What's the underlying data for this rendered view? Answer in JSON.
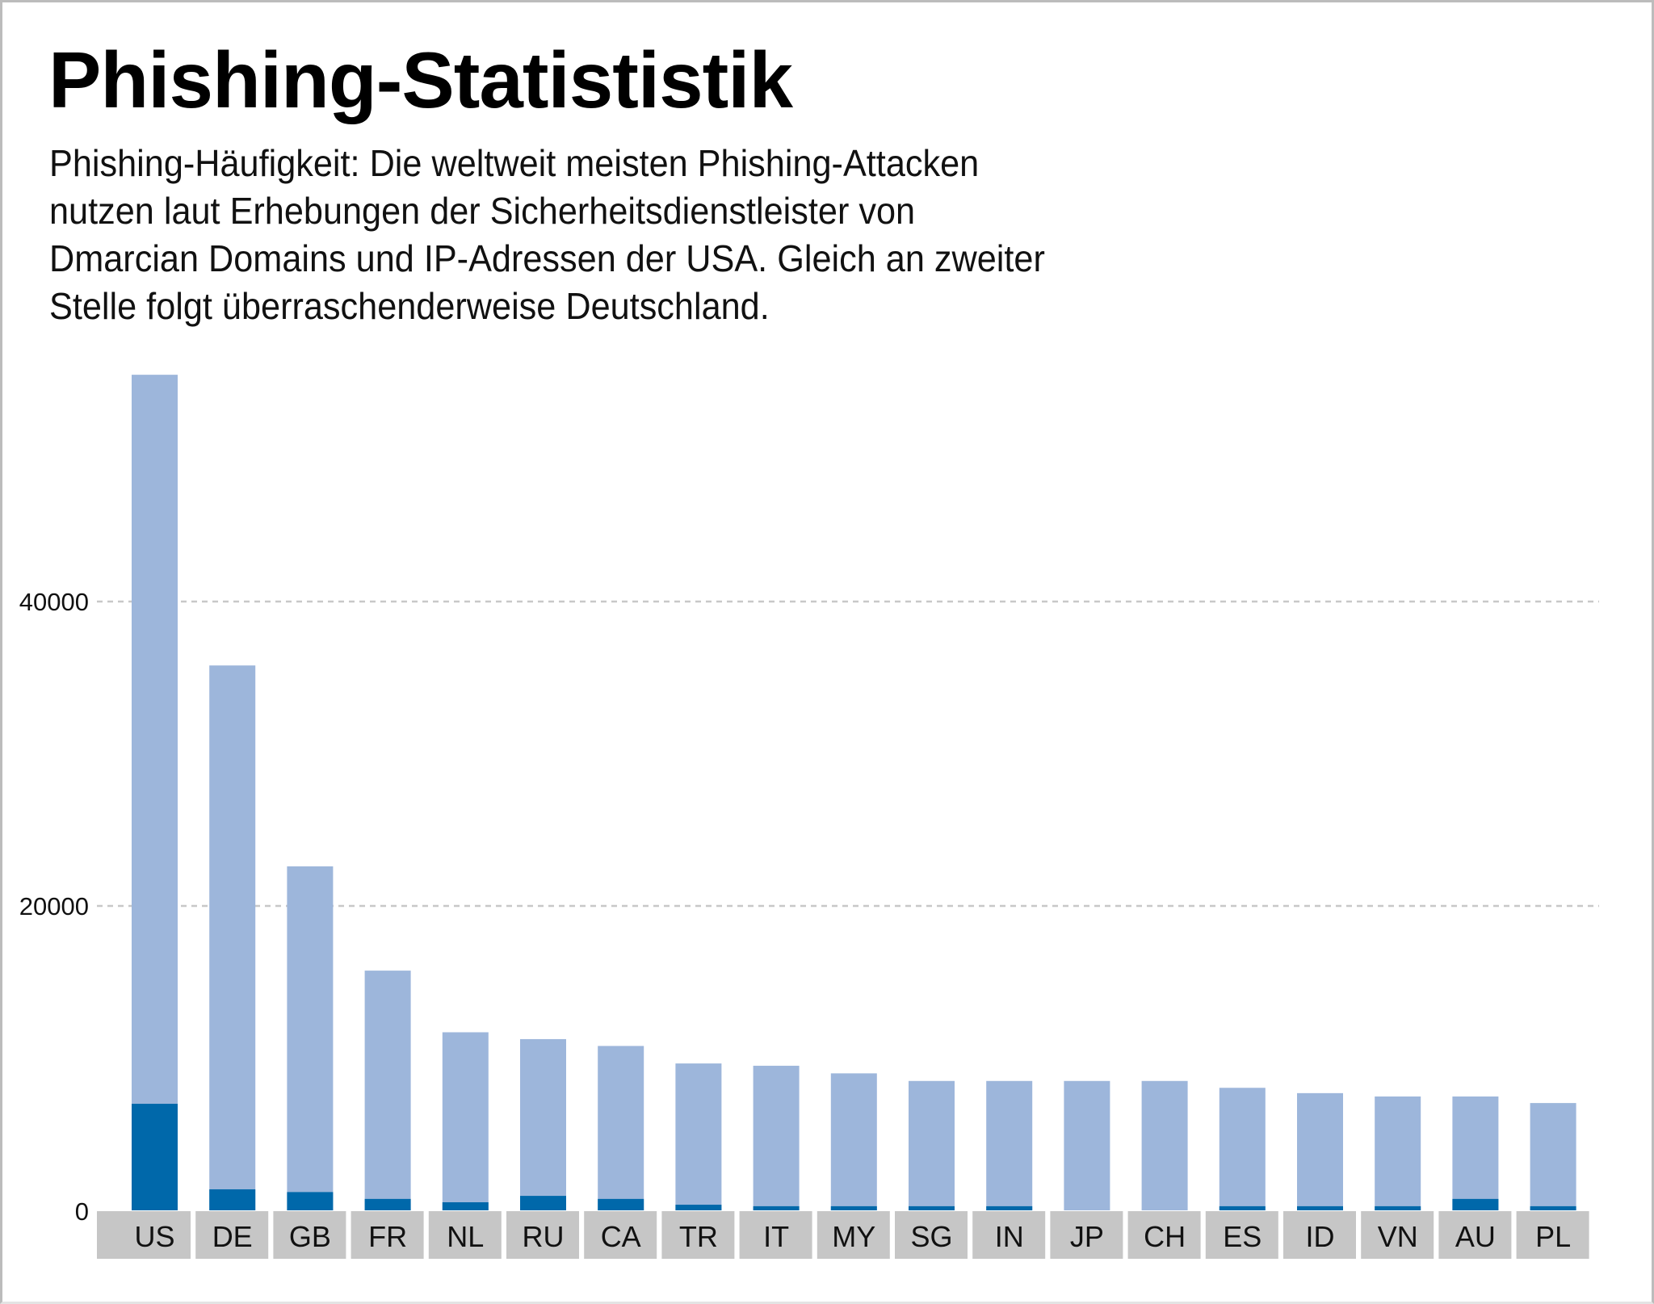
{
  "header": {
    "title": "Phishing-Statististik",
    "subtitle_lines": [
      "Phishing-Häufigkeit: Die weltweit meisten Phishing-Attacken",
      "nutzen laut Erhebungen der Sicherheitsdienstleister von",
      "Dmarcian Domains und IP-Adressen der USA. Gleich an zweiter",
      "Stelle folgt überraschenderweise Deutschland."
    ]
  },
  "colors": {
    "total": "#9db6db",
    "highlight": "#0068aa",
    "label_bg": "#c6c6c6",
    "grid": "#c8c8c8"
  },
  "chart_data": {
    "type": "bar",
    "stacked": false,
    "overlay": true,
    "title": "Phishing-Statististik",
    "xlabel": "",
    "ylabel": "",
    "ylim": [
      0,
      55000
    ],
    "yticks": [
      0,
      20000,
      40000
    ],
    "ytick_labels": [
      "0",
      "20000",
      "40000"
    ],
    "grid": "horizontal-dashed",
    "legend": "none",
    "categories": [
      "US",
      "DE",
      "GB",
      "FR",
      "NL",
      "RU",
      "CA",
      "TR",
      "IT",
      "MY",
      "SG",
      "IN",
      "JP",
      "CH",
      "ES",
      "ID",
      "VN",
      "AU",
      "PL"
    ],
    "series": [
      {
        "name": "total",
        "values": [
          54900,
          35800,
          22600,
          15750,
          11700,
          11250,
          10800,
          9650,
          9500,
          9000,
          8500,
          8500,
          8500,
          8500,
          8050,
          7700,
          7480,
          7480,
          7050
        ]
      },
      {
        "name": "highlight",
        "values": [
          7000,
          1380,
          1200,
          750,
          530,
          950,
          750,
          370,
          270,
          270,
          270,
          270,
          0,
          0,
          270,
          270,
          270,
          750,
          270
        ]
      }
    ]
  }
}
